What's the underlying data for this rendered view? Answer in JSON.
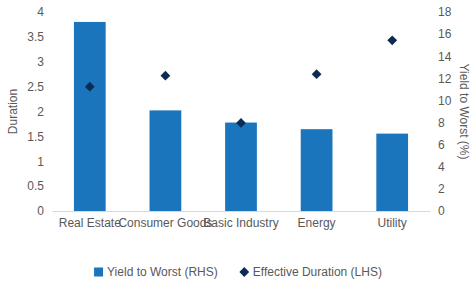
{
  "chart_data": {
    "type": "bar",
    "categories": [
      "Real Estate",
      "Consumer Goods",
      "Basic Industry",
      "Energy",
      "Utility"
    ],
    "y_label": "Duration",
    "y2_label": "Yield to Worst (%)",
    "ylim": [
      0,
      4
    ],
    "yticks": [
      0,
      0.5,
      1,
      1.5,
      2,
      2.5,
      3,
      3.5,
      4
    ],
    "y2lim": [
      0,
      18
    ],
    "y2ticks": [
      0,
      2,
      4,
      6,
      8,
      10,
      12,
      14,
      16,
      18
    ],
    "legend": "bottom",
    "series": [
      {
        "name": "Yield to Worst (RHS)",
        "type": "bar",
        "axis": "y2",
        "color": "#1a75bc",
        "values": [
          17.1,
          9.1,
          8.0,
          7.4,
          7.0
        ]
      },
      {
        "name": "Effective Duration (LHS)",
        "type": "scatter",
        "marker": "diamond",
        "color": "#0d2c54",
        "values": [
          2.5,
          2.72,
          1.77,
          2.75,
          3.43
        ]
      }
    ]
  }
}
